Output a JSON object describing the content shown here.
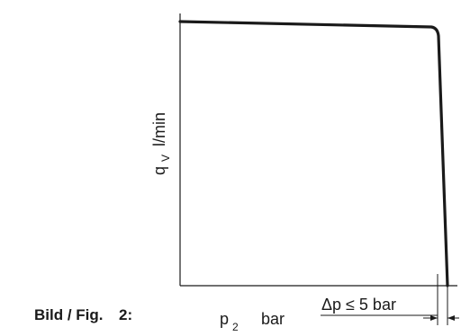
{
  "caption": {
    "prefix": "Bild / Fig.",
    "number": "2:"
  },
  "y_axis": {
    "symbol": "q",
    "subscript": "V",
    "unit": "l/min"
  },
  "x_axis": {
    "symbol": "p",
    "subscript": "2",
    "unit": "bar"
  },
  "annotation": {
    "text": "Δp ≤ 5 bar"
  },
  "chart_data": {
    "type": "line",
    "title": "",
    "xlabel": "p2 bar",
    "ylabel": "qV l/min",
    "grid": false,
    "series": [
      {
        "points": [
          [
            0,
            1.0
          ],
          [
            0.94,
            0.985
          ],
          [
            0.955,
            0.96
          ],
          [
            0.985,
            0.0
          ]
        ]
      }
    ],
    "annotations": [
      "Δp ≤ 5 bar"
    ]
  }
}
